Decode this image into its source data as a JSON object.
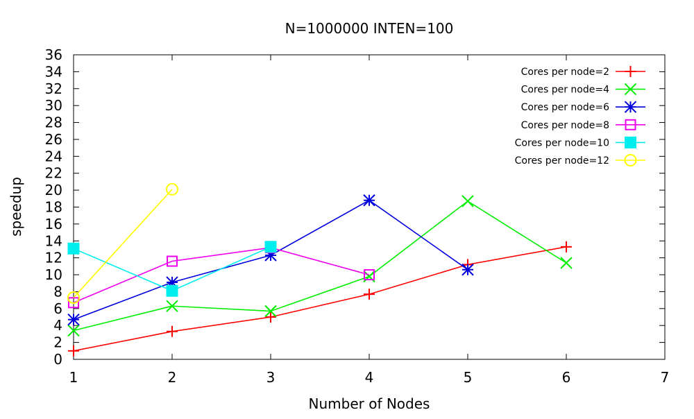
{
  "chart_data": {
    "type": "line",
    "title": "N=1000000 INTEN=100",
    "xlabel": "Number of Nodes",
    "ylabel": "speedup",
    "xlim": [
      1,
      7
    ],
    "ylim": [
      0,
      36
    ],
    "xticks": [
      1,
      2,
      3,
      4,
      5,
      6,
      7
    ],
    "yticks": [
      0,
      2,
      4,
      6,
      8,
      10,
      12,
      14,
      16,
      18,
      20,
      22,
      24,
      26,
      28,
      30,
      32,
      34,
      36
    ],
    "grid": false,
    "legend_position": "top-right",
    "series": [
      {
        "name": "Cores per node=2",
        "color": "#ff0000",
        "marker": "plus",
        "x": [
          1,
          2,
          3,
          4,
          5,
          6
        ],
        "y": [
          1.0,
          3.3,
          5.0,
          7.7,
          11.2,
          13.3
        ]
      },
      {
        "name": "Cores per node=4",
        "color": "#00ee00",
        "marker": "cross",
        "x": [
          1,
          2,
          3,
          4,
          5,
          6
        ],
        "y": [
          3.4,
          6.3,
          5.7,
          9.8,
          18.7,
          11.4
        ]
      },
      {
        "name": "Cores per node=6",
        "color": "#0000dd",
        "marker": "star",
        "x": [
          1,
          2,
          3,
          4,
          5
        ],
        "y": [
          4.7,
          9.1,
          12.3,
          18.8,
          10.6
        ]
      },
      {
        "name": "Cores per node=8",
        "color": "#ee00ee",
        "marker": "square-open",
        "x": [
          1,
          2,
          3,
          4
        ],
        "y": [
          6.7,
          11.6,
          13.2,
          10.0
        ]
      },
      {
        "name": "Cores per node=10",
        "color": "#00eeee",
        "marker": "square-filled",
        "x": [
          1,
          2,
          3
        ],
        "y": [
          13.1,
          8.1,
          13.3
        ]
      },
      {
        "name": "Cores per node=12",
        "color": "#ffff00",
        "marker": "circle-open",
        "x": [
          1,
          2
        ],
        "y": [
          7.3,
          20.1
        ]
      }
    ]
  }
}
